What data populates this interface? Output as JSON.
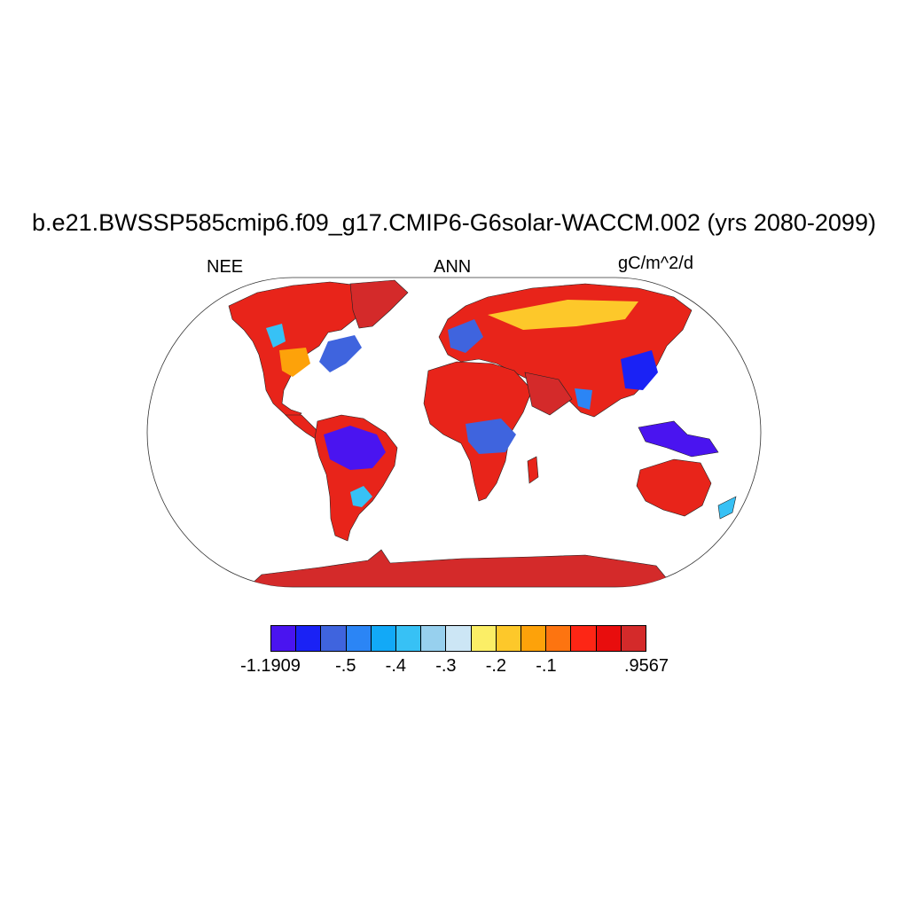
{
  "title": "b.e21.BWSSP585cmip6.f09_g17.CMIP6-G6solar-WACCM.002 (yrs 2080-2099)",
  "left_label": "NEE",
  "center_label": "ANN",
  "right_label": "gC/m^2/d",
  "colorbar": {
    "colors": [
      "#4a14f0",
      "#1a22f5",
      "#3f64de",
      "#2b85f5",
      "#12a9f7",
      "#37c1f5",
      "#97d0ee",
      "#cce6f5",
      "#fbee66",
      "#fdc82a",
      "#fda20a",
      "#fd7410",
      "#fd2615",
      "#e80d0d",
      "#d42a2a"
    ],
    "labels": [
      {
        "text": "-1.1909",
        "index": 0
      },
      {
        "text": "-.5",
        "index": 3
      },
      {
        "text": "-.4",
        "index": 5
      },
      {
        "text": "-.3",
        "index": 7
      },
      {
        "text": "-.2",
        "index": 9
      },
      {
        "text": "-.1",
        "index": 11
      },
      {
        "text": ".9567",
        "index": 15
      }
    ]
  }
}
